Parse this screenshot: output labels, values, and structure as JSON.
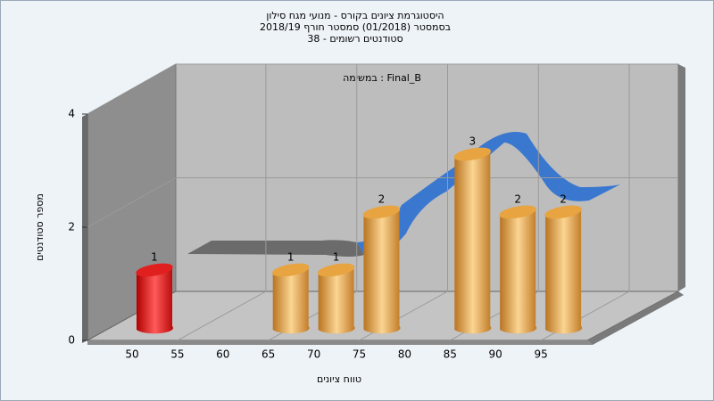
{
  "chart_data": {
    "type": "bar",
    "title": "היסטוגרמת ציונים בקורס - מנועי מגח סילון",
    "subtitle": [
      "בסמסטר  (01/2018)  סמסטר חורף 2018/19",
      "סטודנטים רשומים - 38"
    ],
    "annotation": "במשימה : Final_B",
    "x_label": "טווח ציונים",
    "y_label": "מספר סטודנטים",
    "categories": [
      50,
      55,
      60,
      65,
      70,
      75,
      80,
      85,
      90,
      95
    ],
    "values": [
      1,
      0,
      0,
      1,
      1,
      2,
      0,
      3,
      2,
      2
    ],
    "colors": [
      "#e0201f",
      "#e8a440",
      "#e8a440",
      "#e8a440",
      "#e8a440",
      "#e8a440",
      "#e8a440",
      "#e8a440",
      "#e8a440",
      "#e8a440"
    ],
    "ylim": [
      0,
      4
    ],
    "yticks": [
      0,
      2,
      4
    ],
    "grid": true
  }
}
